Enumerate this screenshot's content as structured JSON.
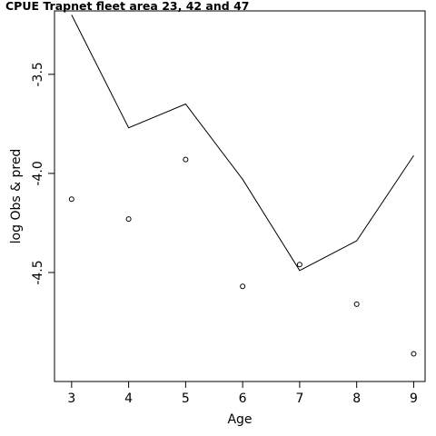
{
  "chart_data": {
    "type": "line",
    "title": "CPUE Trapnet fleet area 23, 42 and 47",
    "xlabel": "Age",
    "ylabel": "log Obs & pred",
    "x": [
      3,
      4,
      5,
      6,
      7,
      8,
      9
    ],
    "xlim": [
      2.7,
      9.2
    ],
    "ylim": [
      -5.05,
      -3.18
    ],
    "x_ticks": [
      "3",
      "4",
      "5",
      "6",
      "7",
      "8",
      "9"
    ],
    "y_ticks": [
      "-3.5",
      "-4.0",
      "-4.5"
    ],
    "y_tick_values": [
      -3.5,
      -4.0,
      -4.5
    ],
    "series": [
      {
        "name": "",
        "style": "line",
        "values": [
          -3.2,
          -3.77,
          -3.65,
          -4.03,
          -4.49,
          -4.34,
          -3.91
        ]
      },
      {
        "name": "",
        "style": "points",
        "values": [
          -4.13,
          -4.23,
          -3.93,
          -4.57,
          -4.46,
          -4.66,
          -4.91
        ]
      }
    ],
    "grid": false,
    "legend": "none"
  }
}
